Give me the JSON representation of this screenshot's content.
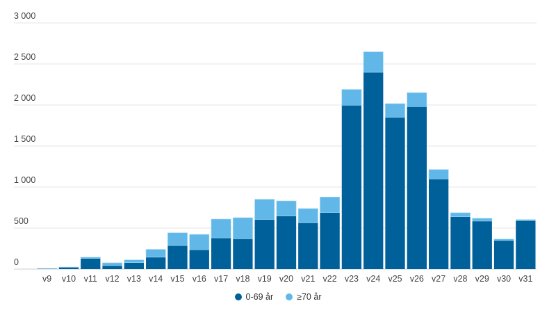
{
  "chart_data": {
    "type": "bar",
    "stacked": true,
    "title": "",
    "xlabel": "",
    "ylabel": "",
    "ylim": [
      0,
      3000
    ],
    "yticks": [
      0,
      500,
      1000,
      1500,
      2000,
      2500,
      3000
    ],
    "ytick_labels": [
      "0",
      "500",
      "1 000",
      "1 500",
      "2 000",
      "2 500",
      "3 000"
    ],
    "grid": true,
    "legend_position": "bottom",
    "categories": [
      "v9",
      "v10",
      "v11",
      "v12",
      "v13",
      "v14",
      "v15",
      "v16",
      "v17",
      "v18",
      "v19",
      "v20",
      "v21",
      "v22",
      "v23",
      "v24",
      "v25",
      "v26",
      "v27",
      "v28",
      "v29",
      "v30",
      "v31"
    ],
    "series": [
      {
        "name": "0-69 år",
        "color": "#00609a",
        "values": [
          5,
          22,
          130,
          43,
          79,
          145,
          287,
          236,
          380,
          369,
          604,
          647,
          564,
          689,
          1997,
          2398,
          1849,
          1980,
          1098,
          638,
          585,
          349,
          590
        ]
      },
      {
        "name": "≥70 år",
        "color": "#61b8e8",
        "values": [
          5,
          3,
          15,
          34,
          34,
          96,
          156,
          187,
          230,
          258,
          247,
          184,
          174,
          190,
          193,
          250,
          168,
          170,
          116,
          49,
          34,
          17,
          14
        ]
      }
    ]
  }
}
